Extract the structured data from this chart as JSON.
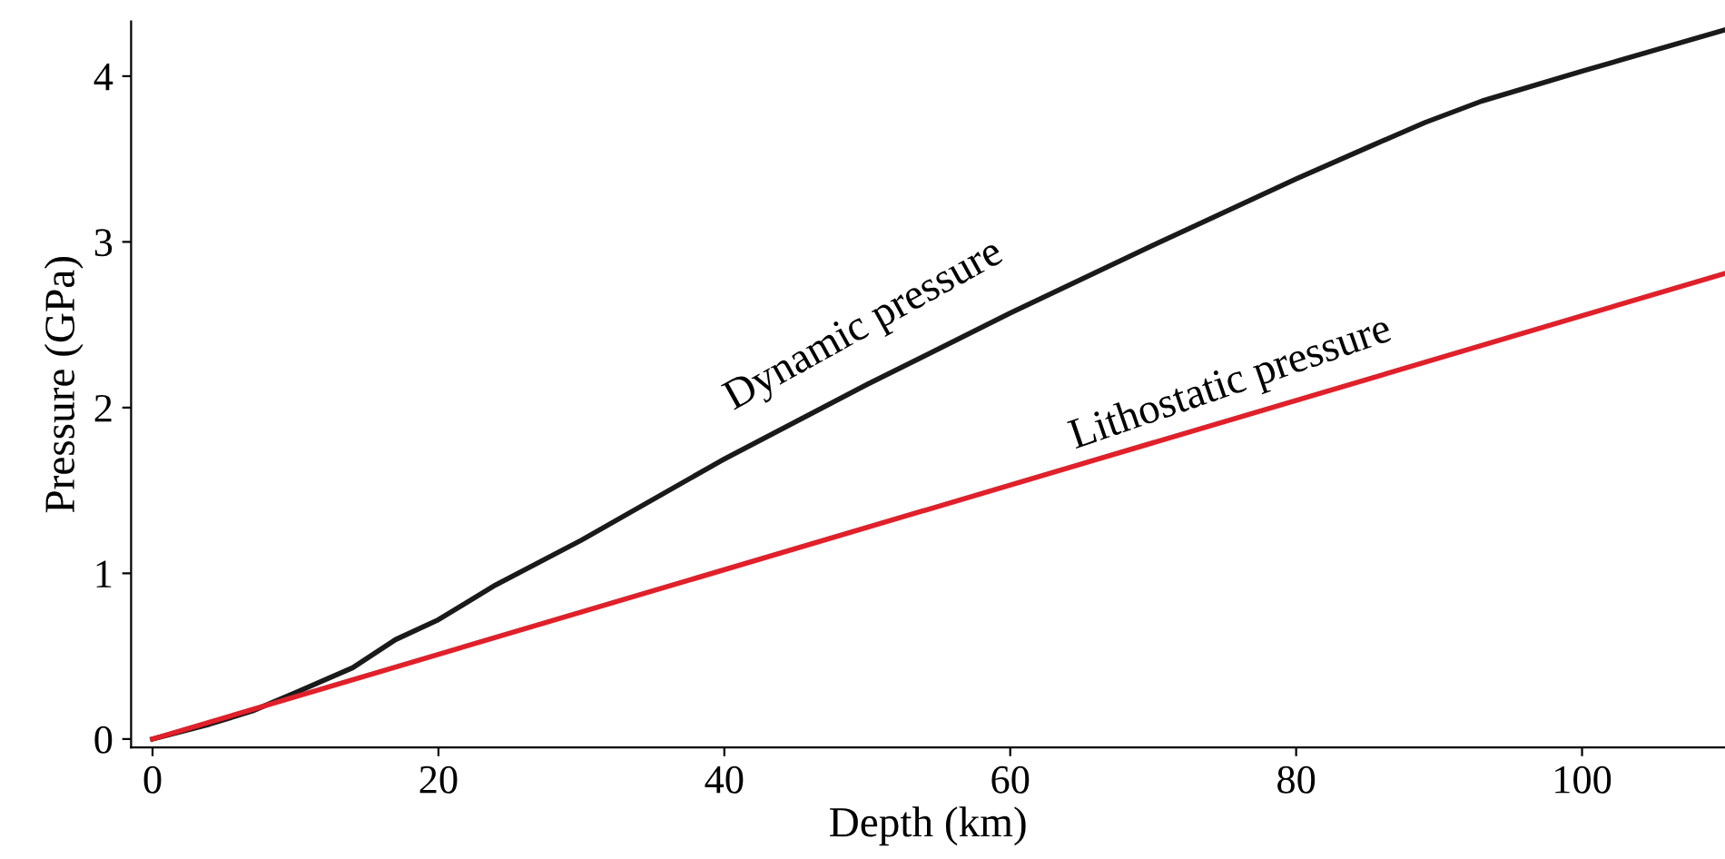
{
  "chart_data": {
    "type": "line",
    "xlabel": "Depth (km)",
    "ylabel": "Pressure (GPa)",
    "series": [
      {
        "color": "#1a1a1a",
        "x": [
          0,
          4,
          7,
          10,
          14,
          17,
          20,
          24,
          30,
          40,
          50,
          60,
          70,
          80,
          85,
          89,
          93,
          100,
          110
        ],
        "values": [
          0,
          0.09,
          0.17,
          0.28,
          0.43,
          0.6,
          0.72,
          0.93,
          1.2,
          1.69,
          2.14,
          2.57,
          2.98,
          3.38,
          3.57,
          3.72,
          3.85,
          4.03,
          4.28
        ]
      },
      {
        "color": "#e0202a",
        "x": [
          0,
          110
        ],
        "values": [
          0,
          2.81
        ]
      }
    ],
    "annotations": [
      "Dynamic pressure",
      "Lithostatic pressure"
    ],
    "xlim": [
      -1.5,
      110
    ],
    "ylim": [
      -0.05,
      4.33
    ],
    "xticks": [
      0,
      20,
      40,
      60,
      80,
      100
    ],
    "yticks": [
      0,
      1,
      2,
      3,
      4
    ],
    "grid": false,
    "legend": false,
    "marker": "none",
    "line_style": "solid"
  }
}
